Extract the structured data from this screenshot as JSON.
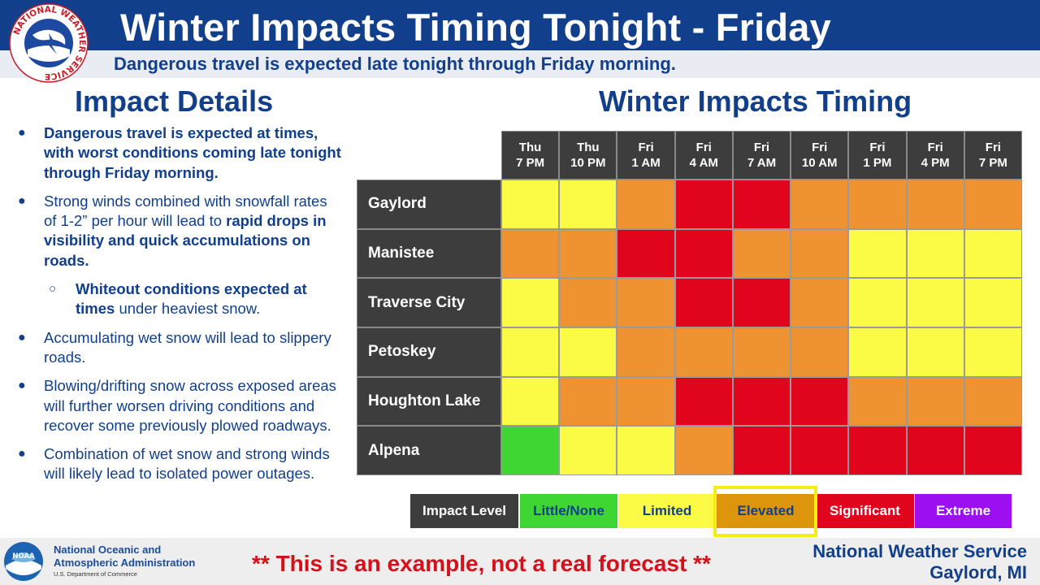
{
  "header": {
    "title": "Winter Impacts Timing Tonight - Friday",
    "subtitle": "Dangerous travel is expected late tonight through Friday morning."
  },
  "nws_logo": {
    "ring_text": "NATIONAL WEATHER SERVICE"
  },
  "impact_details": {
    "heading": "Impact Details",
    "bullets": [
      {
        "level": 1,
        "bold": "Dangerous travel is expected at times, with worst conditions coming late tonight through Friday morning.",
        "text": "",
        "bold_after": ""
      },
      {
        "level": 1,
        "bold": "",
        "text": "Strong winds combined with snowfall rates of 1-2” per hour will lead to ",
        "bold_after": "rapid drops in visibility and quick accumulations on roads."
      },
      {
        "level": 2,
        "bold": "Whiteout conditions expected at times",
        "text": " under heaviest snow.",
        "bold_after": ""
      },
      {
        "level": 1,
        "bold": "",
        "text": "Accumulating wet snow will lead to slippery roads.",
        "bold_after": ""
      },
      {
        "level": 1,
        "bold": "",
        "text": "Blowing/drifting snow across exposed areas will further worsen driving conditions and recover some previously plowed roadways.",
        "bold_after": ""
      },
      {
        "level": 1,
        "bold": "",
        "text": "Combination of wet snow and strong winds will likely lead to isolated power outages.",
        "bold_after": ""
      }
    ]
  },
  "timing": {
    "heading": "Winter Impacts Timing",
    "columns": [
      {
        "day": "Thu",
        "time": "7 PM"
      },
      {
        "day": "Thu",
        "time": "10 PM"
      },
      {
        "day": "Fri",
        "time": "1 AM"
      },
      {
        "day": "Fri",
        "time": "4 AM"
      },
      {
        "day": "Fri",
        "time": "7 AM"
      },
      {
        "day": "Fri",
        "time": "10 AM"
      },
      {
        "day": "Fri",
        "time": "1 PM"
      },
      {
        "day": "Fri",
        "time": "4 PM"
      },
      {
        "day": "Fri",
        "time": "7 PM"
      }
    ],
    "rows": [
      {
        "location": "Gaylord",
        "levels": [
          "limited",
          "limited",
          "elevated",
          "significant",
          "significant",
          "elevated",
          "elevated",
          "elevated",
          "elevated"
        ]
      },
      {
        "location": "Manistee",
        "levels": [
          "elevated",
          "elevated",
          "significant",
          "significant",
          "elevated",
          "elevated",
          "limited",
          "limited",
          "limited"
        ]
      },
      {
        "location": "Traverse City",
        "levels": [
          "limited",
          "elevated",
          "elevated",
          "significant",
          "significant",
          "elevated",
          "limited",
          "limited",
          "limited"
        ]
      },
      {
        "location": "Petoskey",
        "levels": [
          "limited",
          "limited",
          "elevated",
          "elevated",
          "elevated",
          "elevated",
          "limited",
          "limited",
          "limited"
        ]
      },
      {
        "location": "Houghton Lake",
        "levels": [
          "limited",
          "elevated",
          "elevated",
          "significant",
          "significant",
          "significant",
          "elevated",
          "elevated",
          "elevated"
        ]
      },
      {
        "location": "Alpena",
        "levels": [
          "little",
          "limited",
          "limited",
          "elevated",
          "significant",
          "significant",
          "significant",
          "significant",
          "significant"
        ]
      }
    ]
  },
  "legend": {
    "title": "Impact Level",
    "items": [
      {
        "key": "little",
        "label": "Little/None"
      },
      {
        "key": "limited",
        "label": "Limited"
      },
      {
        "key": "elevated",
        "label": "Elevated"
      },
      {
        "key": "significant",
        "label": "Significant"
      },
      {
        "key": "extreme",
        "label": "Extreme"
      }
    ],
    "highlighted": "elevated"
  },
  "colors": {
    "little": "#3fd634",
    "limited": "#fbfb46",
    "elevated": "#ef9232",
    "significant": "#e0041c",
    "extreme": "#9b0ff0",
    "legend_elevated": "#dd960b",
    "title_blue": "#123f8c"
  },
  "footer": {
    "agency_line1": "National Oceanic and",
    "agency_line2": "Atmospheric Administration",
    "department": "U.S. Department of Commerce",
    "noaa_logo_text": "NOAA",
    "disclaimer": "** This is an example, not a real forecast **",
    "office_name": "National Weather Service",
    "office_location": "Gaylord, MI"
  }
}
